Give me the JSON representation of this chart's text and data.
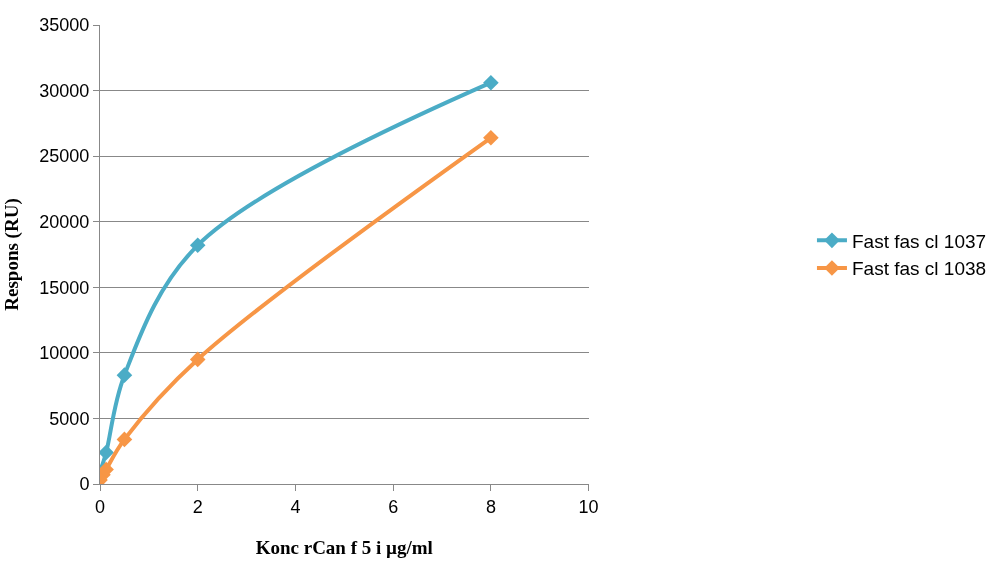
{
  "chart_data": {
    "type": "line",
    "xlabel": "Konc rCan f 5 i µg/ml",
    "ylabel": "Respons (RU)",
    "series": [
      {
        "name": "Fast fas cl 1037",
        "color": "#4bacc6",
        "x": [
          0,
          0.125,
          0.5,
          2,
          8
        ],
        "values": [
          900,
          2400,
          8300,
          18200,
          30600
        ]
      },
      {
        "name": "Fast fas cl 1038",
        "color": "#f79646",
        "x": [
          0,
          0.06,
          0.125,
          0.5,
          2,
          8
        ],
        "values": [
          300,
          700,
          1100,
          3400,
          9500,
          26400
        ]
      }
    ],
    "xlim": [
      0,
      10
    ],
    "xticks": [
      0,
      2,
      4,
      6,
      8,
      10
    ],
    "ylim": [
      0,
      35000
    ],
    "yticks": [
      0,
      5000,
      10000,
      15000,
      20000,
      25000,
      30000,
      35000
    ],
    "grid": "y",
    "legend": "right",
    "marker": "diamond",
    "line_style": "solid"
  }
}
